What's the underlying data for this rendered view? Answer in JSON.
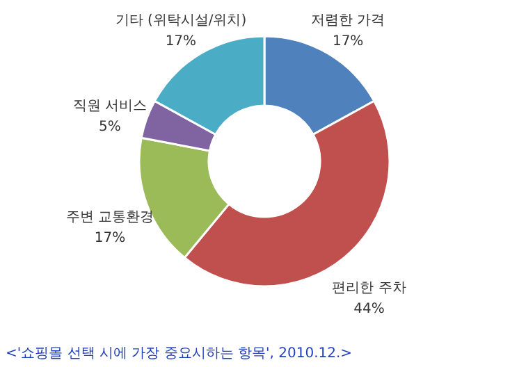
{
  "chart_data": {
    "type": "donut",
    "categories": [
      "저렴한 가격",
      "편리한 주차",
      "주변 교통환경",
      "직원 서비스",
      "기타 (위탁시설/위치)"
    ],
    "values": [
      17,
      44,
      17,
      5,
      17
    ],
    "colors": [
      "#4f81bd",
      "#c0504d",
      "#9bbb59",
      "#8064a2",
      "#4bacc6"
    ],
    "value_labels": [
      "17%",
      "44%",
      "17%",
      "5%",
      "17%"
    ],
    "annotations": [
      "<'쇼핑몰 선택 시에 가장 중요시하는 항목', 2010.12.>"
    ]
  }
}
